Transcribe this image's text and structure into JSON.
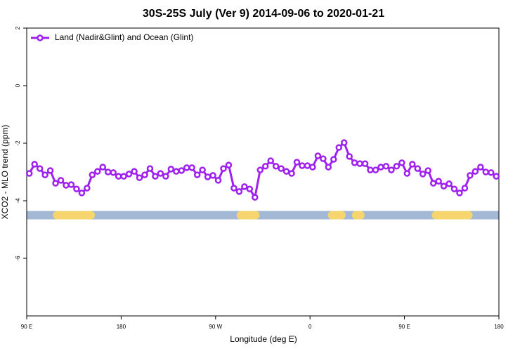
{
  "chart_data": {
    "type": "line",
    "title": "30S-25S July (Ver 9)   2014-09-06 to 2020-01-21",
    "xlabel": "Longitude (deg E)",
    "ylabel": "XCO2 - MLO trend (ppm)",
    "xlim": [
      90,
      540
    ],
    "xticks": [
      {
        "value": 90,
        "label": "90 E"
      },
      180,
      {
        "value": 270,
        "label": "90 W"
      },
      {
        "value": 360,
        "label": "0"
      },
      {
        "value": 450,
        "label": "90 E"
      },
      {
        "value": 540,
        "label": "180"
      }
    ],
    "ylim": [
      -8,
      2
    ],
    "yticks": [
      -6,
      -4,
      -2,
      0,
      2
    ],
    "legend": "top-left",
    "x": [
      92.5,
      97.5,
      102.5,
      107.5,
      112.5,
      117.5,
      122.5,
      127.5,
      132.5,
      137.5,
      142.5,
      147.5,
      152.5,
      157.5,
      162.5,
      167.5,
      172.5,
      177.5,
      182.5,
      187.5,
      192.5,
      197.5,
      202.5,
      207.5,
      212.5,
      217.5,
      222.5,
      227.5,
      232.5,
      237.5,
      242.5,
      247.5,
      252.5,
      257.5,
      262.5,
      267.5,
      272.5,
      277.5,
      282.5,
      287.5,
      292.5,
      297.5,
      302.5,
      307.5,
      312.5,
      317.5,
      322.5,
      327.5,
      332.5,
      337.5,
      342.5,
      347.5,
      352.5,
      357.5,
      362.5,
      367.5,
      372.5,
      377.5,
      382.5,
      387.5,
      392.5,
      397.5,
      402.5,
      407.5,
      412.5,
      417.5,
      422.5,
      427.5,
      432.5,
      437.5,
      442.5,
      447.5,
      452.5,
      457.5,
      462.5,
      467.5,
      472.5,
      477.5,
      482.5,
      487.5,
      492.5,
      497.5,
      502.5,
      507.5,
      512.5,
      517.5,
      522.5,
      527.5,
      532.5,
      537.5
    ],
    "series": [
      {
        "name": "Land (Nadir&Glint) and Ocean (Glint)",
        "color": "#a020f0",
        "values": [
          -3.05,
          -2.73,
          -2.88,
          -3.1,
          -2.95,
          -3.39,
          -3.29,
          -3.46,
          -3.44,
          -3.59,
          -3.73,
          -3.56,
          -3.1,
          -2.98,
          -2.83,
          -3.0,
          -3.02,
          -3.15,
          -3.15,
          -3.07,
          -2.98,
          -3.2,
          -3.1,
          -2.88,
          -3.15,
          -3.05,
          -3.15,
          -2.9,
          -2.98,
          -2.95,
          -2.85,
          -2.85,
          -3.1,
          -2.93,
          -3.17,
          -3.12,
          -3.29,
          -2.88,
          -2.76,
          -3.56,
          -3.68,
          -3.51,
          -3.59,
          -3.88,
          -2.93,
          -2.8,
          -2.61,
          -2.8,
          -2.88,
          -2.98,
          -3.05,
          -2.66,
          -2.78,
          -2.78,
          -2.83,
          -2.44,
          -2.54,
          -2.83,
          -2.56,
          -2.15,
          -1.98,
          -2.46,
          -2.68,
          -2.71,
          -2.71,
          -2.93,
          -2.93,
          -2.83,
          -2.8,
          -2.93,
          -2.8,
          -2.68,
          -3.05,
          -2.73,
          -2.88,
          -3.07,
          -2.95,
          -3.39,
          -3.32,
          -3.49,
          -3.41,
          -3.59,
          -3.73,
          -3.56,
          -3.12,
          -2.98,
          -2.83,
          -3.0,
          -3.02,
          -3.15
        ]
      }
    ],
    "surface_band": {
      "value": -4.5,
      "ocean_color": "#a3b8d4",
      "land_color": "#f7d56e",
      "land_ranges": [
        [
          115,
          155
        ],
        [
          290,
          312
        ],
        [
          377,
          394
        ],
        [
          404,
          408
        ],
        [
          476,
          515
        ]
      ]
    }
  }
}
